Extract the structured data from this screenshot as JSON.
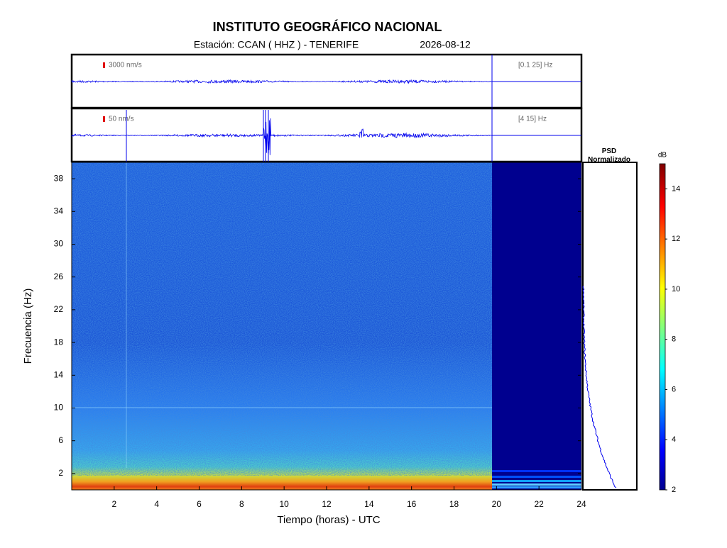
{
  "chart_data": {
    "type": "spectrogram",
    "title": "INSTITUTO GEOGRÁFICO NACIONAL",
    "subtitle": "Estación:  CCAN ( HHZ ) - TENERIFE",
    "date": "2026-08-12",
    "traces": [
      {
        "scale_label": "3000 nm/s",
        "filter_label": "[0.1 25] Hz"
      },
      {
        "scale_label": "50 nm/s",
        "filter_label": "[4 15] Hz"
      }
    ],
    "xlabel": "Tiempo (horas) - UTC",
    "ylabel": "Frecuencia  (Hz)",
    "xlim": [
      0,
      24
    ],
    "xticks": [
      2,
      4,
      6,
      8,
      10,
      12,
      14,
      16,
      18,
      20,
      22,
      24
    ],
    "ylim": [
      0,
      40
    ],
    "yticks": [
      2,
      6,
      10,
      14,
      18,
      22,
      26,
      30,
      34,
      38
    ],
    "psd_title": "PSD Normalizado",
    "colorbar": {
      "label": "dB",
      "lim": [
        2,
        15
      ],
      "ticks": [
        2,
        4,
        6,
        8,
        10,
        12,
        14
      ]
    }
  }
}
